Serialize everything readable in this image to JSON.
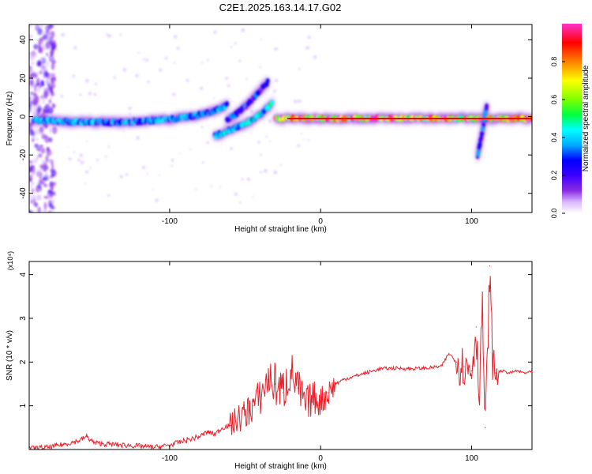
{
  "figure_title": "C2E1.2025.163.14.17.G02",
  "colors": {
    "snr_line": "#e8212b",
    "colormap": [
      "#ffffff",
      "#d9b8ff",
      "#8a2be2",
      "#3b00ff",
      "#0000ff",
      "#00aaff",
      "#00ffff",
      "#00ff40",
      "#7fff00",
      "#ffff00",
      "#ff8000",
      "#ff0000",
      "#ff33cc"
    ]
  },
  "chart_data": [
    {
      "type": "heatmap",
      "title": "C2E1.2025.163.14.17.G02",
      "xlabel": "Height of straight line (km)",
      "ylabel": "Frequency (Hz)",
      "xlim": [
        -193,
        140
      ],
      "ylim": [
        -50,
        48
      ],
      "x_ticks": [
        -100,
        0,
        100
      ],
      "y_ticks": [
        -40,
        -20,
        0,
        20,
        40
      ],
      "colorbar": {
        "label": "Normalized spectral amplitude",
        "range": [
          0,
          1
        ],
        "ticks": [
          "0.0",
          "0.2",
          "0.4",
          "0.6",
          "0.8"
        ]
      },
      "ridges": [
        {
          "x": [
            -190,
            -170,
            -150,
            -130,
            -110,
            -95,
            -80,
            -70,
            -62
          ],
          "y": [
            -2,
            -2.5,
            -3,
            -3,
            -2,
            -1,
            1,
            3,
            6
          ],
          "amplitude": 0.45
        },
        {
          "x": [
            -70,
            -60,
            -50,
            -40,
            -32
          ],
          "y": [
            -10,
            -7,
            -4,
            1,
            7
          ],
          "amplitude": 0.5
        },
        {
          "x": [
            -62,
            -50,
            -42,
            -35
          ],
          "y": [
            -2,
            5,
            12,
            18
          ],
          "amplitude": 0.35
        },
        {
          "x": [
            -30,
            -20,
            0,
            20,
            50,
            80,
            100,
            110,
            140
          ],
          "y": [
            -1,
            -1,
            -1,
            -1,
            -1,
            -1,
            -1,
            -1,
            -1
          ],
          "amplitude": 0.95
        },
        {
          "x": [
            104,
            107,
            110
          ],
          "y": [
            -20,
            -8,
            6
          ],
          "amplitude": 0.4
        }
      ],
      "noise_column": {
        "x": [
          -193,
          -176
        ],
        "y": [
          -50,
          48
        ],
        "amplitude": 0.2
      }
    },
    {
      "type": "line",
      "xlabel": "Height of straight line (km)",
      "ylabel": "SNR (10 * v/v)",
      "y_multiplier": "(x10⁴)",
      "xlim": [
        -193,
        140
      ],
      "ylim": [
        0,
        4.3
      ],
      "x_ticks": [
        -100,
        0,
        100
      ],
      "y_ticks": [
        1,
        2,
        3,
        4
      ],
      "grid": false,
      "series": [
        {
          "x": [
            -193,
            -180,
            -170,
            -160,
            -155,
            -150,
            -140,
            -130,
            -120,
            -110,
            -100,
            -90,
            -80,
            -75,
            -70,
            -65,
            -60,
            -55,
            -50,
            -45,
            -40,
            -35,
            -30,
            -25,
            -20,
            -15,
            -10,
            -5,
            0,
            5,
            10,
            15,
            20,
            25,
            30,
            35,
            40,
            50,
            60,
            70,
            80,
            85,
            90,
            95,
            100,
            103,
            105,
            107,
            109,
            111,
            112,
            114,
            116,
            120,
            125,
            130,
            135,
            140
          ],
          "y": [
            0.02,
            0.05,
            0.12,
            0.2,
            0.3,
            0.15,
            0.12,
            0.1,
            0.08,
            0.05,
            0.1,
            0.2,
            0.3,
            0.4,
            0.35,
            0.5,
            0.55,
            0.7,
            0.8,
            1.0,
            1.2,
            1.6,
            1.5,
            1.3,
            1.8,
            1.4,
            1.0,
            1.2,
            1.1,
            1.3,
            1.5,
            1.6,
            1.65,
            1.7,
            1.75,
            1.8,
            1.85,
            1.86,
            1.85,
            1.86,
            1.9,
            2.2,
            2.0,
            1.9,
            1.8,
            2.8,
            1.2,
            3.4,
            0.5,
            2.6,
            4.2,
            1.9,
            1.75,
            1.8,
            1.75,
            1.8,
            1.75,
            1.78
          ]
        }
      ]
    }
  ]
}
